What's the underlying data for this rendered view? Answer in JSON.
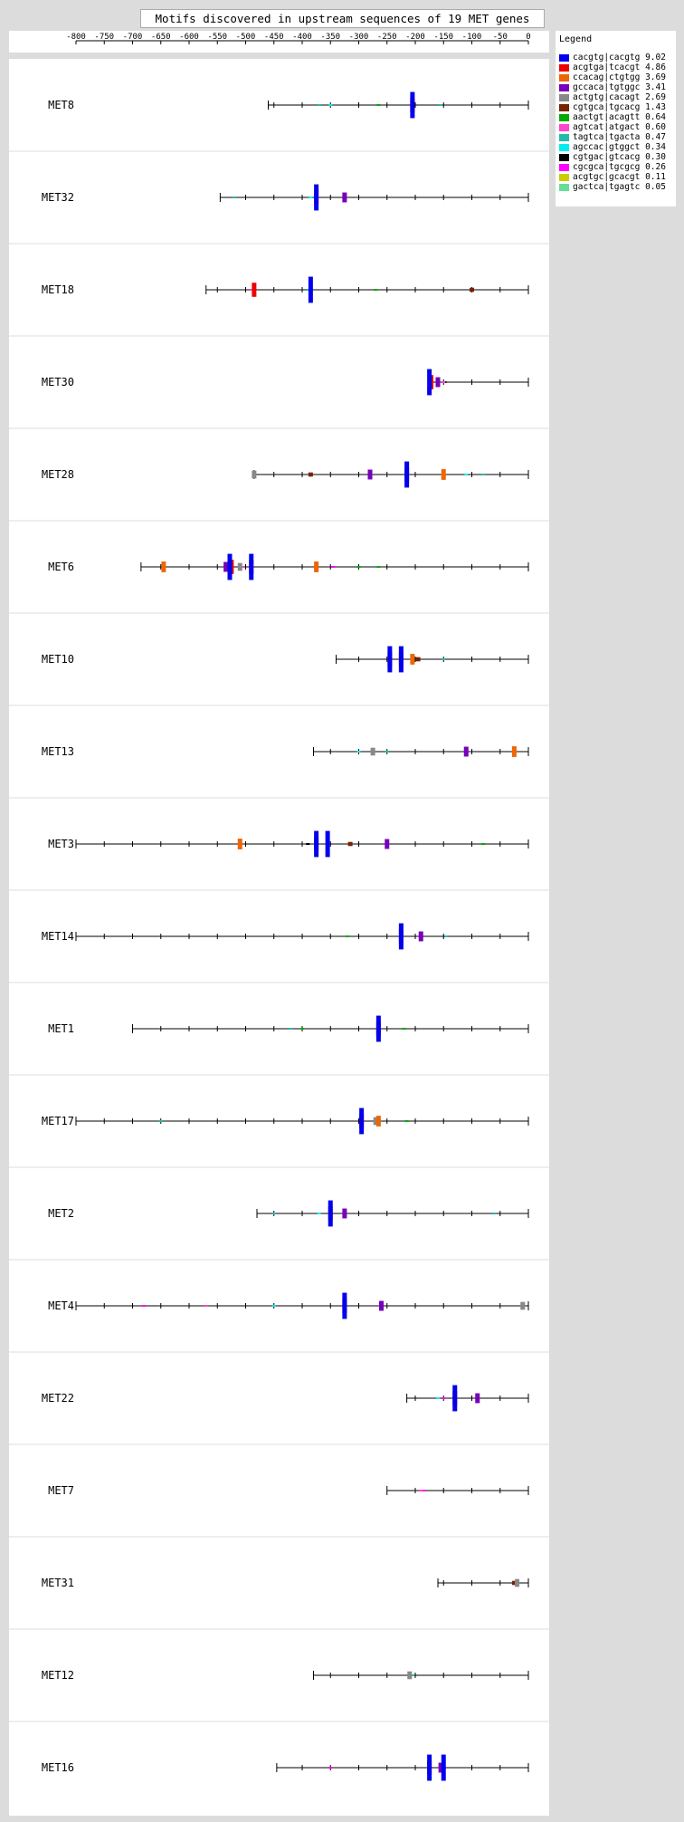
{
  "title": "Motifs discovered in upstream sequences of 19 MET genes",
  "legend_title": "Legend",
  "motifs": [
    {
      "key": "cacgtg|cacgtg",
      "score": "9.02",
      "color": "#0000ee"
    },
    {
      "key": "acgtga|tcacgt",
      "score": "4.86",
      "color": "#ee0000"
    },
    {
      "key": "ccacag|ctgtgg",
      "score": "3.69",
      "color": "#ee6600"
    },
    {
      "key": "gccaca|tgtggc",
      "score": "3.41",
      "color": "#7700bb"
    },
    {
      "key": "actgtg|cacagt",
      "score": "2.69",
      "color": "#888888"
    },
    {
      "key": "cgtgca|tgcacg",
      "score": "1.43",
      "color": "#772200"
    },
    {
      "key": "aactgt|acagtt",
      "score": "0.64",
      "color": "#00aa00"
    },
    {
      "key": "agtcat|atgact",
      "score": "0.60",
      "color": "#ff44cc"
    },
    {
      "key": "tagtca|tgacta",
      "score": "0.47",
      "color": "#22bbaa"
    },
    {
      "key": "agccac|gtggct",
      "score": "0.34",
      "color": "#00eeee"
    },
    {
      "key": "cgtgac|gtcacg",
      "score": "0.30",
      "color": "#000000"
    },
    {
      "key": "cgcgca|tgcgcg",
      "score": "0.26",
      "color": "#ff00ff"
    },
    {
      "key": "acgtgc|gcacgt",
      "score": "0.11",
      "color": "#cccc00"
    },
    {
      "key": "gactca|tgagtc",
      "score": "0.05",
      "color": "#66dd99"
    }
  ],
  "chart_data": {
    "type": "scatter",
    "description": "Feature map of motif occurrences on upstream sequences",
    "x_ticks": [
      -800,
      -750,
      -700,
      -650,
      -600,
      -550,
      -500,
      -450,
      -400,
      -350,
      -300,
      -250,
      -200,
      -150,
      -100,
      -50,
      0
    ],
    "xlim": [
      -800,
      0
    ],
    "genes": [
      {
        "name": "MET8",
        "start": -460,
        "sites": [
          [
            -205,
            0
          ],
          [
            -205,
            1
          ],
          [
            -350,
            9
          ],
          [
            -155,
            8
          ],
          [
            -265,
            6
          ],
          [
            -370,
            8
          ]
        ]
      },
      {
        "name": "MET32",
        "start": -545,
        "sites": [
          [
            -375,
            0
          ],
          [
            -375,
            1
          ],
          [
            -325,
            3
          ],
          [
            -520,
            8
          ],
          [
            -385,
            9
          ]
        ]
      },
      {
        "name": "MET18",
        "start": -570,
        "sites": [
          [
            -485,
            1
          ],
          [
            -490,
            7
          ],
          [
            -385,
            0
          ],
          [
            -390,
            8
          ],
          [
            -100,
            12
          ],
          [
            -100,
            5
          ],
          [
            -270,
            6
          ]
        ]
      },
      {
        "name": "MET30",
        "start": -175,
        "sites": [
          [
            -175,
            0
          ],
          [
            -172,
            1
          ],
          [
            -160,
            3
          ],
          [
            -150,
            7
          ],
          [
            -148,
            10
          ]
        ]
      },
      {
        "name": "MET28",
        "start": -485,
        "sites": [
          [
            -485,
            4
          ],
          [
            -385,
            5
          ],
          [
            -280,
            3
          ],
          [
            -215,
            0
          ],
          [
            -215,
            1
          ],
          [
            -150,
            2
          ],
          [
            -110,
            9
          ],
          [
            -80,
            8
          ]
        ]
      },
      {
        "name": "MET6",
        "start": -685,
        "sites": [
          [
            -645,
            2
          ],
          [
            -528,
            0
          ],
          [
            -535,
            3
          ],
          [
            -525,
            1
          ],
          [
            -505,
            7
          ],
          [
            -490,
            0
          ],
          [
            -490,
            1
          ],
          [
            -510,
            4
          ],
          [
            -375,
            2
          ],
          [
            -345,
            11
          ],
          [
            -300,
            6
          ],
          [
            -265,
            6
          ]
        ]
      },
      {
        "name": "MET10",
        "start": -340,
        "sites": [
          [
            -245,
            0
          ],
          [
            -245,
            1
          ],
          [
            -225,
            0
          ],
          [
            -225,
            1
          ],
          [
            -205,
            2
          ],
          [
            -195,
            5
          ],
          [
            -150,
            8
          ]
        ]
      },
      {
        "name": "MET13",
        "start": -380,
        "sites": [
          [
            -300,
            9
          ],
          [
            -275,
            4
          ],
          [
            -250,
            8
          ],
          [
            -110,
            3
          ],
          [
            -25,
            2
          ],
          [
            -25,
            12
          ]
        ]
      },
      {
        "name": "MET3",
        "start": -800,
        "sites": [
          [
            -510,
            2
          ],
          [
            -375,
            0
          ],
          [
            -375,
            1
          ],
          [
            -355,
            0
          ],
          [
            -315,
            5
          ],
          [
            -250,
            3
          ],
          [
            -390,
            10
          ],
          [
            -80,
            6
          ]
        ]
      },
      {
        "name": "MET14",
        "start": -800,
        "sites": [
          [
            -225,
            0
          ],
          [
            -225,
            1
          ],
          [
            -190,
            3
          ],
          [
            -145,
            8
          ],
          [
            -320,
            6
          ]
        ]
      },
      {
        "name": "MET1",
        "start": -700,
        "sites": [
          [
            -265,
            0
          ],
          [
            -265,
            1
          ],
          [
            -265,
            2
          ],
          [
            -220,
            6
          ],
          [
            -420,
            8
          ],
          [
            -400,
            6
          ]
        ]
      },
      {
        "name": "MET17",
        "start": -800,
        "sites": [
          [
            -295,
            0
          ],
          [
            -295,
            1
          ],
          [
            -270,
            4
          ],
          [
            -265,
            2
          ],
          [
            -215,
            6
          ],
          [
            -650,
            8
          ]
        ]
      },
      {
        "name": "MET2",
        "start": -480,
        "sites": [
          [
            -350,
            0
          ],
          [
            -350,
            1
          ],
          [
            -325,
            3
          ],
          [
            -450,
            8
          ],
          [
            -370,
            9
          ],
          [
            -60,
            8
          ]
        ]
      },
      {
        "name": "MET4",
        "start": -800,
        "sites": [
          [
            -325,
            0
          ],
          [
            -325,
            1
          ],
          [
            -260,
            3
          ],
          [
            -680,
            11
          ],
          [
            -570,
            7
          ],
          [
            -10,
            4
          ],
          [
            -450,
            9
          ]
        ]
      },
      {
        "name": "MET22",
        "start": -215,
        "sites": [
          [
            -130,
            0
          ],
          [
            -130,
            1
          ],
          [
            -90,
            3
          ],
          [
            -150,
            11
          ],
          [
            -160,
            9
          ]
        ]
      },
      {
        "name": "MET7",
        "start": -250,
        "sites": [
          [
            -190,
            7
          ],
          [
            -185,
            11
          ]
        ]
      },
      {
        "name": "MET31",
        "start": -160,
        "sites": [
          [
            -25,
            5
          ],
          [
            -20,
            4
          ]
        ]
      },
      {
        "name": "MET12",
        "start": -380,
        "sites": [
          [
            -210,
            4
          ],
          [
            -205,
            8
          ]
        ]
      },
      {
        "name": "MET16",
        "start": -445,
        "sites": [
          [
            -175,
            0
          ],
          [
            -175,
            1
          ],
          [
            -155,
            3
          ],
          [
            -150,
            0
          ],
          [
            -350,
            11
          ]
        ]
      }
    ]
  }
}
